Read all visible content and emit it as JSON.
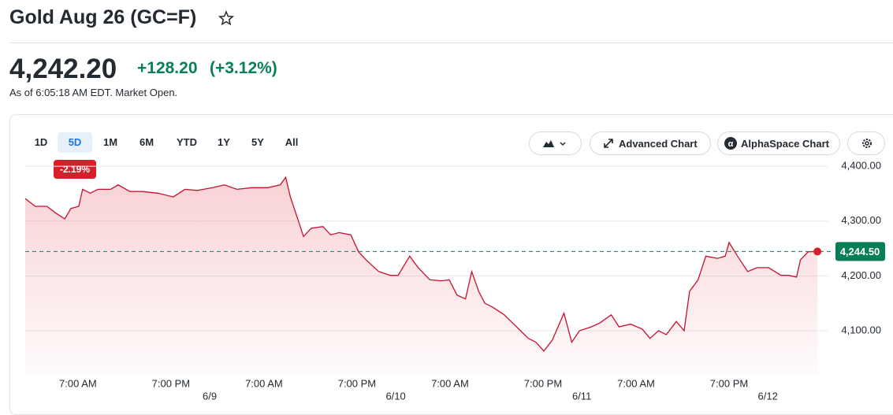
{
  "header": {
    "title": "Gold Aug 26 (GC=F)"
  },
  "quote": {
    "price": "4,242.20",
    "change": "+128.20",
    "change_percent": "(+3.12%)",
    "as_of": "As of 6:05:18 AM EDT. Market Open."
  },
  "toolbar": {
    "ranges": [
      "1D",
      "5D",
      "1M",
      "6M",
      "YTD",
      "1Y",
      "5Y",
      "All"
    ],
    "selected_range": "5D",
    "range_change": "-2.19%",
    "buttons": [
      "Advanced Chart",
      "AlphaSpace Chart"
    ]
  },
  "chart_data": {
    "type": "line",
    "color": "#c8102e",
    "x": [
      -23.8,
      -22.5,
      -21.0,
      -19.9,
      -18.7,
      -17.9,
      -16.9,
      -16.4,
      -15.4,
      -14.4,
      -12.8,
      -11.8,
      -10.3,
      -8.7,
      -6.7,
      -4.7,
      -3.2,
      -1.6,
      0.4,
      1.9,
      3.5,
      5.5,
      7.5,
      9.1,
      9.8,
      10.4,
      11.1,
      12.1,
      13.1,
      14.6,
      15.6,
      16.7,
      18.2,
      19.2,
      20.2,
      21.8,
      23.3,
      24.3,
      25.8,
      26.9,
      28.4,
      29.9,
      30.9,
      31.9,
      33.0,
      33.8,
      34.7,
      35.5,
      36.5,
      38.0,
      39.1,
      40.1,
      41.1,
      42.1,
      43.1,
      44.2,
      45.7,
      46.7,
      47.7,
      49.2,
      50.3,
      51.8,
      52.8,
      54.3,
      55.8,
      56.8,
      57.9,
      58.9,
      60.2,
      61.2,
      61.9,
      63.0,
      64.0,
      65.5,
      66.5,
      67.0,
      68.1,
      69.4,
      70.6,
      72.1,
      73.7,
      74.7,
      75.7,
      76.2,
      77.2,
      78.4
    ],
    "values": [
      4341,
      4327,
      4327,
      4315,
      4304,
      4323,
      4327,
      4358,
      4351,
      4358,
      4358,
      4366,
      4354,
      4354,
      4351,
      4344,
      4358,
      4356,
      4361,
      4366,
      4358,
      4361,
      4361,
      4366,
      4380,
      4344,
      4315,
      4272,
      4287,
      4290,
      4275,
      4279,
      4275,
      4244,
      4229,
      4208,
      4201,
      4201,
      4236,
      4215,
      4193,
      4191,
      4193,
      4165,
      4158,
      4208,
      4172,
      4150,
      4143,
      4129,
      4114,
      4100,
      4086,
      4079,
      4063,
      4083,
      4132,
      4079,
      4100,
      4107,
      4114,
      4129,
      4107,
      4112,
      4103,
      4086,
      4100,
      4093,
      4117,
      4100,
      4172,
      4193,
      4236,
      4232,
      4236,
      4261,
      4236,
      4208,
      4215,
      4215,
      4201,
      4201,
      4198,
      4229,
      4244,
      4244.5
    ],
    "xlim": [
      -23.8,
      79.2
    ],
    "xticks": [
      {
        "value": -17,
        "label": "7:00 AM"
      },
      {
        "value": -5,
        "label": "7:00 PM"
      },
      {
        "value": 7,
        "label": "7:00 AM"
      },
      {
        "value": 19,
        "label": "7:00 PM"
      },
      {
        "value": 31,
        "label": "7:00 AM"
      },
      {
        "value": 43,
        "label": "7:00 PM"
      },
      {
        "value": 55,
        "label": "7:00 AM"
      },
      {
        "value": 67,
        "label": "7:00 PM"
      }
    ],
    "date_ticks": [
      {
        "value": 0,
        "label": "6/9"
      },
      {
        "value": 24,
        "label": "6/10"
      },
      {
        "value": 48,
        "label": "6/11"
      },
      {
        "value": 72,
        "label": "6/12"
      }
    ],
    "ylim": [
      4021,
      4416
    ],
    "yticks": [
      {
        "value": 4100,
        "label": "4,100.00"
      },
      {
        "value": 4200,
        "label": "4,200.00"
      },
      {
        "value": 4300,
        "label": "4,300.00"
      },
      {
        "value": 4400,
        "label": "4,400.00"
      }
    ],
    "grid": true,
    "last_price": {
      "value": 4244.5,
      "label": "4,244.50",
      "color": "#0a7e55"
    }
  }
}
